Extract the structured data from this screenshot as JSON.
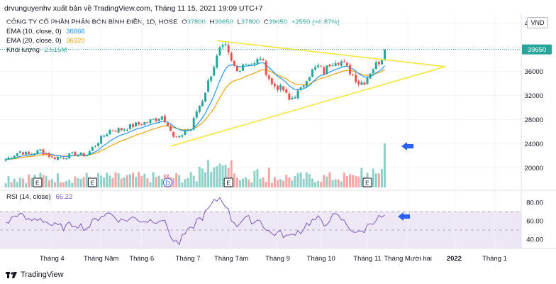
{
  "header": {
    "publisher_line": "drvunguyenhv xuất bản về TradingView.com, Tháng 11 15, 2021 19:09 UTC+7"
  },
  "legend": {
    "title": "CÔNG TY CỔ PHẦN PHÂN BÓN BÌNH ĐIỀN, 1D, HOSE",
    "o_label": "O",
    "o": "37800",
    "h_label": "H",
    "h": "39650",
    "l_label": "L",
    "l": "37800",
    "c_label": "C",
    "c": "39650",
    "chg": "+2550 (+6.87%)",
    "ema10_label": "EMA (10, close, 0)",
    "ema10": "36866",
    "ema20_label": "EMA (20, close, 0)",
    "ema20": "36320",
    "vol_label": "Khối lượng",
    "vol": "2.515M"
  },
  "rsi_legend": {
    "label": "RSI (14, close)",
    "value": "66.22"
  },
  "currency": "VND",
  "footer": {
    "brand": "TradingView"
  },
  "colors": {
    "up": "#26a69a",
    "down": "#ef5350",
    "ema10": "#2196f3",
    "ema20": "#f0a30a",
    "trendline": "#f5e63c",
    "rsi": "#7e57c2",
    "rsi_band": "#ede7f6",
    "arrow": "#2962ff"
  },
  "chart_data": [
    {
      "type": "candlestick",
      "x_ticks": [
        "Tháng 4",
        "Tháng Năm",
        "Tháng 6",
        "Tháng 7",
        "Tháng Tám",
        "Tháng 9",
        "Tháng 10",
        "Tháng 11",
        "Tháng Mười hai",
        "2022",
        "Tháng 1"
      ],
      "y_ticks": [
        20000,
        24000,
        28000,
        32000,
        36000,
        40000,
        44000
      ],
      "ylim": [
        16500,
        45500
      ],
      "last_price": "39650",
      "close_path": [
        [
          0,
          21400
        ],
        [
          5,
          22700
        ],
        [
          8,
          22200
        ],
        [
          12,
          22900
        ],
        [
          16,
          21700
        ],
        [
          20,
          21800
        ],
        [
          24,
          22300
        ],
        [
          28,
          22100
        ],
        [
          30,
          23300
        ],
        [
          33,
          24900
        ],
        [
          36,
          26200
        ],
        [
          40,
          26400
        ],
        [
          44,
          27000
        ],
        [
          48,
          27500
        ],
        [
          52,
          28100
        ],
        [
          54,
          28600
        ],
        [
          56,
          27400
        ],
        [
          58,
          25000
        ],
        [
          60,
          24900
        ],
        [
          62,
          26200
        ],
        [
          64,
          26400
        ],
        [
          66,
          29400
        ],
        [
          68,
          31300
        ],
        [
          70,
          34200
        ],
        [
          72,
          37000
        ],
        [
          74,
          39500
        ],
        [
          76,
          39900
        ],
        [
          78,
          37500
        ],
        [
          80,
          36000
        ],
        [
          82,
          37400
        ],
        [
          84,
          37500
        ],
        [
          86,
          37100
        ],
        [
          88,
          38400
        ],
        [
          90,
          36000
        ],
        [
          92,
          33800
        ],
        [
          94,
          33400
        ],
        [
          96,
          32900
        ],
        [
          98,
          31200
        ],
        [
          100,
          32100
        ],
        [
          102,
          32900
        ],
        [
          104,
          35000
        ],
        [
          106,
          36100
        ],
        [
          108,
          36800
        ],
        [
          110,
          35900
        ],
        [
          112,
          37300
        ],
        [
          114,
          37900
        ],
        [
          116,
          37600
        ],
        [
          118,
          36500
        ],
        [
          120,
          35500
        ],
        [
          122,
          34100
        ],
        [
          124,
          34300
        ],
        [
          126,
          36000
        ],
        [
          128,
          37100
        ],
        [
          130,
          38300
        ],
        [
          131,
          39650
        ]
      ],
      "trend_lines": [
        {
          "from": [
            73,
            41100
          ],
          "to": [
            152,
            36800
          ]
        },
        {
          "from": [
            57,
            23600
          ],
          "to": [
            152,
            36800
          ]
        }
      ]
    },
    {
      "type": "bar",
      "name": "Khối lượng",
      "last_value": "2.515M",
      "event_markers": [
        "E",
        "E",
        "D",
        "E",
        "E"
      ]
    },
    {
      "type": "line",
      "name": "RSI (14, close)",
      "y_ticks": [
        40.0,
        60.0,
        80.0
      ],
      "ylim": [
        30,
        90
      ],
      "band": [
        30,
        70
      ],
      "path": [
        [
          0,
          56
        ],
        [
          4,
          68
        ],
        [
          8,
          60
        ],
        [
          12,
          63
        ],
        [
          16,
          55
        ],
        [
          20,
          53
        ],
        [
          24,
          57
        ],
        [
          28,
          52
        ],
        [
          30,
          58
        ],
        [
          33,
          66
        ],
        [
          36,
          68
        ],
        [
          40,
          60
        ],
        [
          44,
          63
        ],
        [
          48,
          60
        ],
        [
          52,
          61
        ],
        [
          54,
          62
        ],
        [
          56,
          52
        ],
        [
          58,
          38
        ],
        [
          60,
          36
        ],
        [
          62,
          46
        ],
        [
          64,
          50
        ],
        [
          66,
          60
        ],
        [
          68,
          64
        ],
        [
          70,
          72
        ],
        [
          72,
          80
        ],
        [
          74,
          85
        ],
        [
          76,
          78
        ],
        [
          78,
          62
        ],
        [
          80,
          56
        ],
        [
          82,
          61
        ],
        [
          84,
          62
        ],
        [
          86,
          59
        ],
        [
          88,
          62
        ],
        [
          90,
          50
        ],
        [
          92,
          46
        ],
        [
          94,
          47
        ],
        [
          96,
          45
        ],
        [
          98,
          42
        ],
        [
          100,
          48
        ],
        [
          102,
          49
        ],
        [
          104,
          56
        ],
        [
          106,
          60
        ],
        [
          108,
          62
        ],
        [
          110,
          55
        ],
        [
          112,
          63
        ],
        [
          114,
          65
        ],
        [
          116,
          62
        ],
        [
          118,
          55
        ],
        [
          120,
          50
        ],
        [
          122,
          46
        ],
        [
          124,
          50
        ],
        [
          126,
          58
        ],
        [
          128,
          62
        ],
        [
          130,
          64
        ],
        [
          131,
          66.22
        ]
      ]
    }
  ]
}
